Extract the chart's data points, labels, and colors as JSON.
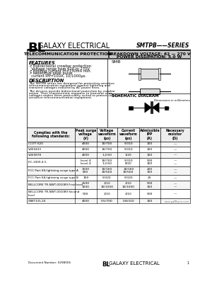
{
  "header_bl": "BL",
  "header_company": "GALAXY ELECTRICAL",
  "header_series": "SMTPB——SERIES",
  "section1_label": "TELECOMMUNICATION PROTECTION",
  "section2_line1": "BREAKDOWN VOLTAGE: 62 — 270 V",
  "section2_line2": "POWER DISSIPATION: 5.0 W",
  "features_title": "FEATURES",
  "features": [
    "↗ Bidirectional crowbar protection",
    "  Voltage range from 62V to 270V.",
    "↗ Holding current IH=150mA min.",
    "↗ Repetitive peak pulse",
    "  current IPP=100A, 10/1000μs."
  ],
  "description_title": "DESCRIPTION",
  "description": "The SMTPB series are designed for protecting sensitive\ntelecommunication equipment against lightning and\ntransient voltages induced by AC power lines.\n\nThe devices provide bidirectional protection by crowbar\naction. Their characteristic response to transient over-\nvoltages makes them particularly suited to protect voltage\nsensitive telecommunication equipment.",
  "smb_label": "SMB",
  "schematic_label": "SCHEMATIC DIAGRAM",
  "table_header_col1": "Complies with the\nfollowing standards:",
  "table_header_col2": "Peak surge\nvoltage\n(V)",
  "table_header_col3": "Voltage\nwaveform\n(μs)",
  "table_header_col4": "Current\nwaveform\n(μs)",
  "table_header_col5": "Admissible\nIPP\n(A)",
  "table_header_col6": "Necessary\nresistor\n(Ω)",
  "table_rows": [
    [
      "CCITT K20",
      "4000",
      "10/700",
      "5/310",
      "100",
      "—"
    ],
    [
      "VDE0433",
      "4000",
      "10/700",
      "5/310",
      "100",
      "—"
    ],
    [
      "VDE0878",
      "4000",
      "1.2/50",
      "1/20",
      "100",
      "—"
    ],
    [
      "IEC-1000-4-5",
      "level 4\nlevel 4",
      "10/700\n1.2/50",
      "5/310\n8/20",
      "500\n100",
      "—\n—"
    ],
    [
      "FCC Part 68,lightning surge type A",
      "1500\n800",
      "10/160\n10/560",
      "10/160\n10/560",
      "200\n100",
      "—\n—"
    ],
    [
      "FCC Part 68,lightning surge type B",
      "100",
      "5/320",
      "5/320",
      "25",
      "—"
    ],
    [
      "BELLCORE TR-NWT-001089 First level",
      "2500\n1000",
      "2/10\n10/1000",
      "2/10\n10/1000",
      "500\n100",
      "—\n—"
    ],
    [
      "BELLCORE TR-NWT-001089 Second\nlevel",
      "500",
      "2/10",
      "2/10",
      "500",
      "—"
    ],
    [
      "CNET131-24",
      "4000",
      "0.5/700",
      "0.8/310",
      "100",
      "—"
    ]
  ],
  "footer_doc": "Document Number: 0298006",
  "footer_web": "www.galaxycn.com",
  "footer_page": "1",
  "bg_color": "#ffffff"
}
